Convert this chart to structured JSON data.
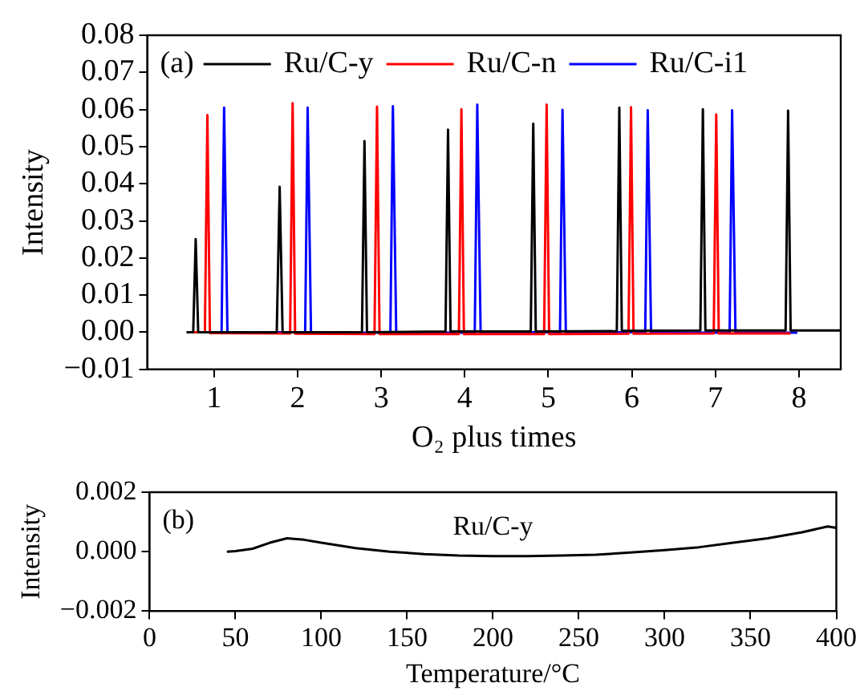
{
  "chart_data": [
    {
      "type": "line",
      "xlabel": "O₂ plus times",
      "ylabel": "Intensity",
      "annotations": [
        "(a)"
      ],
      "legend": "top",
      "grid": false,
      "marker": "none",
      "line_style": "solid",
      "xlim": [
        0.2,
        8.5
      ],
      "xticks": [
        1,
        2,
        3,
        4,
        5,
        6,
        7,
        8
      ],
      "ylim": [
        -0.01,
        0.08
      ],
      "yticks": [
        {
          "value": -0.01,
          "label": "−0.01"
        },
        {
          "value": 0,
          "label": "0.00"
        },
        {
          "value": 0.01,
          "label": "0.01"
        },
        {
          "value": 0.02,
          "label": "0.02"
        },
        {
          "value": 0.03,
          "label": "0.03"
        },
        {
          "value": 0.04,
          "label": "0.04"
        },
        {
          "value": 0.05,
          "label": "0.05"
        },
        {
          "value": 0.06,
          "label": "0.06"
        },
        {
          "value": 0.07,
          "label": "0.07"
        },
        {
          "value": 0.08,
          "label": "0.08"
        }
      ],
      "series": [
        {
          "name": "Ru/C-y",
          "color": "#000000",
          "x": [
            0.67,
            0.75,
            0.78,
            0.81,
            1.75,
            1.785,
            1.82,
            2.77,
            2.8,
            2.83,
            3.77,
            3.8,
            3.83,
            4.79,
            4.82,
            4.85,
            5.82,
            5.85,
            5.88,
            6.82,
            6.85,
            6.88,
            7.84,
            7.87,
            7.9,
            8.5
          ],
          "values": [
            0,
            0,
            0.0251,
            0,
            0,
            0.0392,
            0,
            0,
            0.0515,
            0,
            0.0002,
            0.0546,
            0.0002,
            0.0002,
            0.0562,
            0.0002,
            0.0003,
            0.0605,
            0.0004,
            0.0005,
            0.0601,
            0.0005,
            0.0005,
            0.0597,
            0.0005,
            0.0005
          ]
        },
        {
          "name": "Ru/C-n",
          "color": "#ff0000",
          "x": [
            0.72,
            0.89,
            0.92,
            0.95,
            1.91,
            1.94,
            1.97,
            2.92,
            2.95,
            2.98,
            3.93,
            3.96,
            3.99,
            4.95,
            4.98,
            5.01,
            5.96,
            5.99,
            6.02,
            6.98,
            7.01,
            7.04,
            7.9
          ],
          "values": [
            0,
            0,
            0.0585,
            -0.0002,
            -0.0003,
            0.0617,
            -0.0004,
            -0.0005,
            0.0608,
            -0.0005,
            -0.0005,
            0.0601,
            -0.0005,
            -0.0005,
            0.0613,
            -0.0005,
            -0.0004,
            0.0606,
            -0.0004,
            -0.0003,
            0.0587,
            -0.0003,
            -0.0003
          ]
        },
        {
          "name": "Ru/C-i1",
          "color": "#0000ff",
          "x": [
            0.8,
            1.09,
            1.12,
            1.16,
            2.09,
            2.12,
            2.16,
            3.11,
            3.14,
            3.18,
            4.12,
            4.15,
            4.19,
            5.14,
            5.17,
            5.21,
            6.16,
            6.19,
            6.23,
            7.17,
            7.2,
            7.24,
            7.98
          ],
          "values": [
            0,
            0,
            0.0605,
            0,
            0,
            0.0605,
            -0.0001,
            -0.0001,
            0.0609,
            -0.0001,
            -0.0001,
            0.0613,
            0,
            0,
            0.0599,
            0,
            0,
            0.0598,
            -0.0001,
            -0.0001,
            0.0598,
            -0.0001,
            -0.0001
          ]
        }
      ]
    },
    {
      "type": "line",
      "xlabel": "Temperature/°C",
      "ylabel": "Intensity",
      "annotations": [
        "(b)"
      ],
      "grid": false,
      "marker": "none",
      "line_style": "solid",
      "xlim": [
        0,
        400
      ],
      "xticks": [
        0,
        50,
        100,
        150,
        200,
        250,
        300,
        350,
        400
      ],
      "ylim": [
        -0.002,
        0.002
      ],
      "yticks": [
        {
          "value": -0.002,
          "label": "−0.002"
        },
        {
          "value": 0,
          "label": "0.000"
        },
        {
          "value": 0.002,
          "label": "0.002"
        }
      ],
      "series": [
        {
          "name": "Ru/C-y",
          "color": "#000000",
          "x": [
            45,
            50,
            60,
            70,
            80,
            90,
            100,
            120,
            140,
            160,
            180,
            200,
            220,
            240,
            260,
            280,
            300,
            320,
            340,
            360,
            380,
            395,
            400
          ],
          "values": [
            0,
            2e-05,
            0.0001,
            0.0003,
            0.00045,
            0.0004,
            0.0003,
            0.00012,
            0,
            -8e-05,
            -0.00013,
            -0.00015,
            -0.00015,
            -0.00013,
            -0.0001,
            -3e-05,
            5e-05,
            0.00015,
            0.0003,
            0.00045,
            0.00065,
            0.00085,
            0.0008
          ]
        }
      ]
    }
  ]
}
